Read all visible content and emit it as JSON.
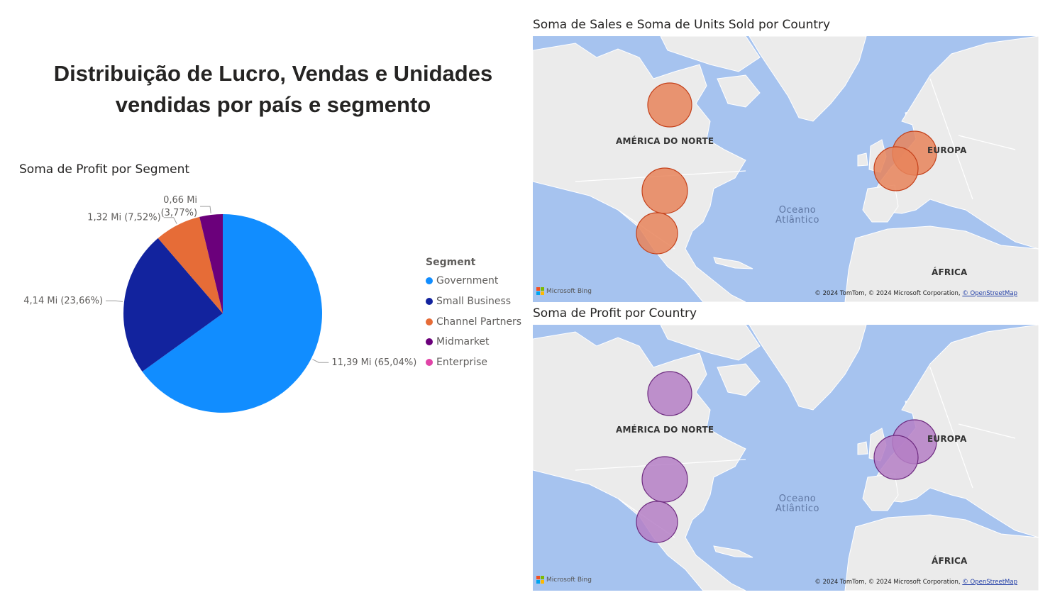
{
  "page": {
    "title": "Distribuição de Lucro, Vendas e Unidades\nvendidas por país e segmento"
  },
  "pie": {
    "title": "Soma de Profit por Segment"
  },
  "chart_data": [
    {
      "type": "pie",
      "title": "Soma de Profit por Segment",
      "legend_title": "Segment",
      "legend_position": "right",
      "categories": [
        "Government",
        "Small Business",
        "Channel Partners",
        "Midmarket",
        "Enterprise"
      ],
      "values": [
        11.39,
        4.14,
        1.32,
        0.66,
        0
      ],
      "percentages": [
        65.04,
        23.66,
        7.52,
        3.77,
        0
      ],
      "data_labels": [
        "11,39 Mi (65,04%)",
        "4,14 Mi (23,66%)",
        "1,32 Mi (7,52%)",
        "0,66 Mi (3,77%)",
        ""
      ],
      "colors": [
        "#118dff",
        "#12239e",
        "#e66c37",
        "#6b007b",
        "#e044a7"
      ]
    }
  ],
  "map1": {
    "title": "Soma de Sales e Soma de Units Sold por Country",
    "bubble_fill": "#e8845a",
    "bubble_stroke": "#c4401a"
  },
  "map2": {
    "title": "Soma de Profit por Country",
    "bubble_fill": "#b57fc6",
    "bubble_stroke": "#6d2a7f"
  },
  "map_labels": {
    "north_america": "AMÉRICA DO NORTE",
    "europe": "EUROPA",
    "africa": "ÁFRICA",
    "ocean_line1": "Oceano",
    "ocean_line2": "Atlântico",
    "bing": "Microsoft Bing",
    "attribution": "© 2024 TomTom, © 2024 Microsoft Corporation,",
    "osm": "© OpenStreetMap"
  }
}
